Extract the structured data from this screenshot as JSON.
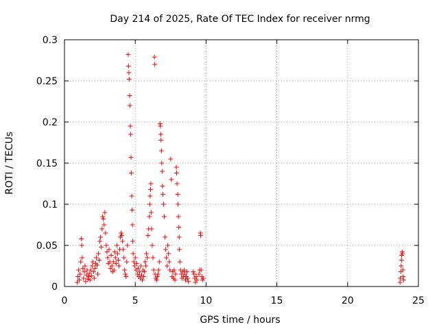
{
  "chart_data": {
    "type": "scatter",
    "title": "Day 214 of 2025, Rate Of TEC Index for receiver nrmg",
    "xlabel": "GPS time / hours",
    "ylabel": "ROTI / TECUs",
    "xlim": [
      0,
      25
    ],
    "ylim": [
      0,
      0.3
    ],
    "xticks": [
      0,
      5,
      10,
      15,
      20,
      25
    ],
    "xtick_labels": [
      "0",
      "5",
      "10",
      "15",
      "20",
      "25"
    ],
    "yticks": [
      0,
      0.05,
      0.1,
      0.15,
      0.2,
      0.25,
      0.3
    ],
    "ytick_labels": [
      "0",
      "0.05",
      "0.1",
      "0.15",
      "0.2",
      "0.25",
      "0.3"
    ],
    "grid": true,
    "marker": "+",
    "color": "#ff0000",
    "series": [
      {
        "name": "ROTI",
        "points": [
          [
            0.9,
            0.005
          ],
          [
            0.95,
            0.012
          ],
          [
            1.0,
            0.02
          ],
          [
            1.05,
            0.008
          ],
          [
            1.1,
            0.015
          ],
          [
            1.15,
            0.03
          ],
          [
            1.2,
            0.058
          ],
          [
            1.22,
            0.05
          ],
          [
            1.25,
            0.035
          ],
          [
            1.3,
            0.022
          ],
          [
            1.35,
            0.01
          ],
          [
            1.4,
            0.018
          ],
          [
            1.45,
            0.025
          ],
          [
            1.5,
            0.006
          ],
          [
            1.55,
            0.014
          ],
          [
            1.6,
            0.02
          ],
          [
            1.65,
            0.009
          ],
          [
            1.7,
            0.012
          ],
          [
            1.75,
            0.016
          ],
          [
            1.8,
            0.008
          ],
          [
            1.85,
            0.02
          ],
          [
            1.9,
            0.013
          ],
          [
            1.95,
            0.025
          ],
          [
            2.0,
            0.03
          ],
          [
            2.05,
            0.018
          ],
          [
            2.1,
            0.01
          ],
          [
            2.15,
            0.022
          ],
          [
            2.2,
            0.028
          ],
          [
            2.25,
            0.035
          ],
          [
            2.3,
            0.026
          ],
          [
            2.35,
            0.015
          ],
          [
            2.4,
            0.04
          ],
          [
            2.45,
            0.032
          ],
          [
            2.5,
            0.055
          ],
          [
            2.55,
            0.06
          ],
          [
            2.6,
            0.048
          ],
          [
            2.65,
            0.07
          ],
          [
            2.7,
            0.085
          ],
          [
            2.75,
            0.082
          ],
          [
            2.8,
            0.075
          ],
          [
            2.85,
            0.09
          ],
          [
            2.9,
            0.065
          ],
          [
            2.95,
            0.05
          ],
          [
            3.0,
            0.042
          ],
          [
            3.05,
            0.035
          ],
          [
            3.1,
            0.028
          ],
          [
            3.15,
            0.045
          ],
          [
            3.2,
            0.03
          ],
          [
            3.25,
            0.022
          ],
          [
            3.3,
            0.038
          ],
          [
            3.35,
            0.025
          ],
          [
            3.4,
            0.018
          ],
          [
            3.45,
            0.03
          ],
          [
            3.5,
            0.02
          ],
          [
            3.55,
            0.042
          ],
          [
            3.6,
            0.035
          ],
          [
            3.65,
            0.028
          ],
          [
            3.7,
            0.05
          ],
          [
            3.75,
            0.04
          ],
          [
            3.8,
            0.032
          ],
          [
            3.85,
            0.025
          ],
          [
            3.9,
            0.045
          ],
          [
            3.95,
            0.06
          ],
          [
            4.0,
            0.065
          ],
          [
            4.05,
            0.062
          ],
          [
            4.1,
            0.055
          ],
          [
            4.15,
            0.045
          ],
          [
            4.2,
            0.035
          ],
          [
            4.25,
            0.02
          ],
          [
            4.3,
            0.015
          ],
          [
            4.35,
            0.012
          ],
          [
            4.4,
            0.03
          ],
          [
            4.45,
            0.05
          ],
          [
            4.5,
            0.282
          ],
          [
            4.52,
            0.268
          ],
          [
            4.55,
            0.26
          ],
          [
            4.57,
            0.252
          ],
          [
            4.6,
            0.232
          ],
          [
            4.62,
            0.22
          ],
          [
            4.65,
            0.195
          ],
          [
            4.67,
            0.185
          ],
          [
            4.7,
            0.157
          ],
          [
            4.72,
            0.138
          ],
          [
            4.75,
            0.11
          ],
          [
            4.77,
            0.093
          ],
          [
            4.8,
            0.075
          ],
          [
            4.82,
            0.055
          ],
          [
            4.85,
            0.04
          ],
          [
            4.9,
            0.03
          ],
          [
            4.95,
            0.025
          ],
          [
            5.0,
            0.035
          ],
          [
            5.05,
            0.02
          ],
          [
            5.1,
            0.028
          ],
          [
            5.15,
            0.015
          ],
          [
            5.2,
            0.022
          ],
          [
            5.25,
            0.012
          ],
          [
            5.3,
            0.018
          ],
          [
            5.35,
            0.01
          ],
          [
            5.4,
            0.025
          ],
          [
            5.45,
            0.014
          ],
          [
            5.5,
            0.008
          ],
          [
            5.55,
            0.02
          ],
          [
            5.6,
            0.012
          ],
          [
            5.65,
            0.018
          ],
          [
            5.7,
            0.03
          ],
          [
            5.75,
            0.025
          ],
          [
            5.8,
            0.04
          ],
          [
            5.85,
            0.035
          ],
          [
            5.9,
            0.062
          ],
          [
            5.95,
            0.07
          ],
          [
            6.0,
            0.085
          ],
          [
            6.02,
            0.1
          ],
          [
            6.05,
            0.11
          ],
          [
            6.08,
            0.118
          ],
          [
            6.1,
            0.125
          ],
          [
            6.12,
            0.09
          ],
          [
            6.15,
            0.07
          ],
          [
            6.2,
            0.05
          ],
          [
            6.25,
            0.035
          ],
          [
            6.3,
            0.02
          ],
          [
            6.35,
            0.279
          ],
          [
            6.38,
            0.27
          ],
          [
            6.4,
            0.015
          ],
          [
            6.45,
            0.01
          ],
          [
            6.5,
            0.008
          ],
          [
            6.55,
            0.012
          ],
          [
            6.6,
            0.015
          ],
          [
            6.65,
            0.02
          ],
          [
            6.7,
            0.03
          ],
          [
            6.75,
            0.198
          ],
          [
            6.78,
            0.195
          ],
          [
            6.8,
            0.185
          ],
          [
            6.82,
            0.178
          ],
          [
            6.85,
            0.165
          ],
          [
            6.87,
            0.15
          ],
          [
            6.9,
            0.14
          ],
          [
            6.92,
            0.122
          ],
          [
            6.95,
            0.112
          ],
          [
            7.0,
            0.1
          ],
          [
            7.05,
            0.085
          ],
          [
            7.1,
            0.06
          ],
          [
            7.15,
            0.045
          ],
          [
            7.2,
            0.035
          ],
          [
            7.25,
            0.025
          ],
          [
            7.3,
            0.05
          ],
          [
            7.35,
            0.04
          ],
          [
            7.4,
            0.03
          ],
          [
            7.45,
            0.02
          ],
          [
            7.5,
            0.155
          ],
          [
            7.55,
            0.13
          ],
          [
            7.6,
            0.012
          ],
          [
            7.65,
            0.018
          ],
          [
            7.7,
            0.01
          ],
          [
            7.75,
            0.02
          ],
          [
            7.8,
            0.008
          ],
          [
            7.85,
            0.015
          ],
          [
            7.9,
            0.145
          ],
          [
            7.92,
            0.138
          ],
          [
            7.95,
            0.125
          ],
          [
            8.0,
            0.112
          ],
          [
            8.02,
            0.1
          ],
          [
            8.05,
            0.085
          ],
          [
            8.08,
            0.072
          ],
          [
            8.1,
            0.06
          ],
          [
            8.12,
            0.045
          ],
          [
            8.15,
            0.03
          ],
          [
            8.2,
            0.02
          ],
          [
            8.25,
            0.015
          ],
          [
            8.3,
            0.01
          ],
          [
            8.35,
            0.018
          ],
          [
            8.4,
            0.012
          ],
          [
            8.45,
            0.02
          ],
          [
            8.5,
            0.015
          ],
          [
            8.55,
            0.008
          ],
          [
            8.6,
            0.012
          ],
          [
            8.65,
            0.018
          ],
          [
            8.7,
            0.01
          ],
          [
            8.75,
            0.006
          ],
          [
            9.1,
            0.018
          ],
          [
            9.15,
            0.015
          ],
          [
            9.2,
            0.01
          ],
          [
            9.25,
            0.005
          ],
          [
            9.3,
            0.012
          ],
          [
            9.35,
            0.008
          ],
          [
            9.5,
            0.015
          ],
          [
            9.55,
            0.02
          ],
          [
            9.6,
            0.065
          ],
          [
            9.62,
            0.062
          ],
          [
            9.65,
            0.02
          ],
          [
            9.7,
            0.012
          ],
          [
            9.75,
            0.008
          ],
          [
            9.8,
            0.01
          ],
          [
            23.7,
            0.005
          ],
          [
            23.72,
            0.01
          ],
          [
            23.75,
            0.018
          ],
          [
            23.78,
            0.025
          ],
          [
            23.8,
            0.032
          ],
          [
            23.82,
            0.038
          ],
          [
            23.85,
            0.042
          ],
          [
            23.87,
            0.04
          ],
          [
            23.9,
            0.02
          ],
          [
            23.92,
            0.012
          ],
          [
            23.95,
            0.008
          ]
        ]
      }
    ]
  }
}
